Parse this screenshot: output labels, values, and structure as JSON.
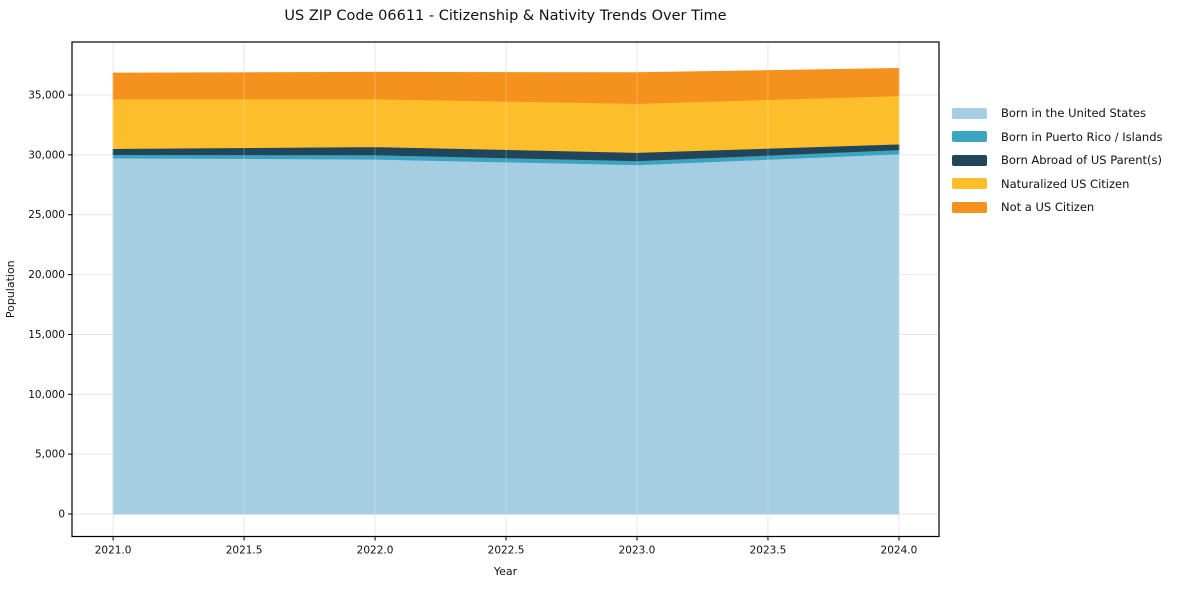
{
  "chart_data": {
    "type": "area",
    "stacked": true,
    "title": "US ZIP Code 06611 - Citizenship & Nativity Trends Over Time",
    "xlabel": "Year",
    "ylabel": "Population",
    "x": [
      2021,
      2022,
      2023,
      2024
    ],
    "series": [
      {
        "name": "Born in the United States",
        "color": "#a6cee3",
        "values": [
          29750,
          29650,
          29180,
          30080
        ]
      },
      {
        "name": "Born in Puerto Rico / Islands",
        "color": "#3da4bf",
        "values": [
          280,
          360,
          340,
          360
        ]
      },
      {
        "name": "Born Abroad of US Parent(s)",
        "color": "#21455b",
        "values": [
          500,
          680,
          690,
          470
        ]
      },
      {
        "name": "Naturalized US Citizen",
        "color": "#fdbe2c",
        "values": [
          4150,
          3990,
          4090,
          4040
        ]
      },
      {
        "name": "Not a US Citizen",
        "color": "#f5921e",
        "values": [
          2150,
          2210,
          2560,
          2270
        ]
      }
    ],
    "xticks": [
      2021.0,
      2021.5,
      2022.0,
      2022.5,
      2023.0,
      2023.5,
      2024.0
    ],
    "xtick_labels": [
      "2021.0",
      "2021.5",
      "2022.0",
      "2022.5",
      "2023.0",
      "2023.5",
      "2024.0"
    ],
    "yticks": [
      0,
      5000,
      10000,
      15000,
      20000,
      25000,
      30000,
      35000
    ],
    "ytick_labels": [
      "0",
      "5,000",
      "10,000",
      "15,000",
      "20,000",
      "25,000",
      "30,000",
      "35,000"
    ],
    "xlim": [
      2020.843,
      2024.153
    ],
    "ylim": [
      -1880,
      39430
    ],
    "grid": true,
    "grid_color": "#e7e7e7",
    "legend_position": "right",
    "spine_color": "#000000"
  }
}
